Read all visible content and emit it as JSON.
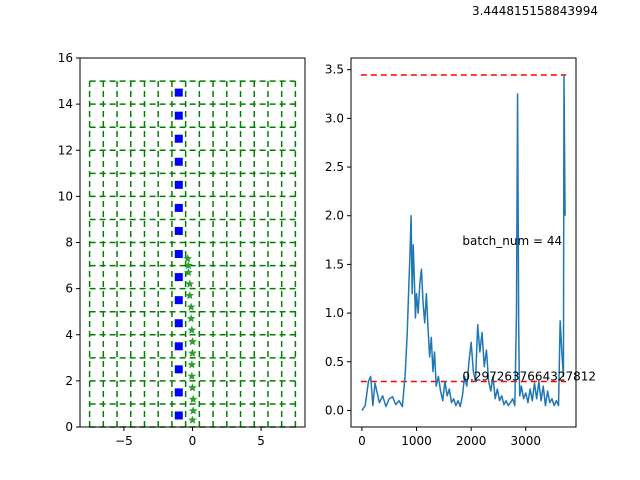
{
  "figure": {
    "top_text": "3.444815158843994"
  },
  "colors": {
    "grid_lines": "#008000",
    "grid_markers": "#0000ff",
    "trajectory": "#2ca02c",
    "series": "#1f77b4",
    "reference_lines": "#ff0000"
  },
  "chart_data": [
    {
      "type": "scatter",
      "xlim": [
        -8.2,
        8.2
      ],
      "ylim": [
        0,
        16
      ],
      "x_ticks": [
        -5,
        0,
        5
      ],
      "y_ticks": [
        0,
        2,
        4,
        6,
        8,
        10,
        12,
        14,
        16
      ],
      "x_tick_labels": [
        "−5",
        "0",
        "5"
      ],
      "y_tick_labels": [
        "0",
        "2",
        "4",
        "6",
        "8",
        "10",
        "12",
        "14",
        "16"
      ],
      "grid": {
        "x_lines": [
          -7.5,
          -6.5,
          -5.5,
          -4.5,
          -3.5,
          -2.5,
          -1.5,
          -0.5,
          0.5,
          1.5,
          2.5,
          3.5,
          4.5,
          5.5,
          6.5,
          7.5
        ],
        "y_lines": [
          0,
          1,
          2,
          3,
          4,
          5,
          6,
          7,
          8,
          9,
          10,
          11,
          12,
          13,
          14,
          15
        ],
        "x_span": [
          -7.5,
          7.5
        ],
        "y_span": [
          0,
          15
        ],
        "style": "dashed"
      },
      "square_markers": {
        "x": -1.0,
        "y": [
          0.5,
          1.5,
          2.5,
          3.5,
          4.5,
          5.5,
          6.5,
          7.5,
          8.5,
          9.5,
          10.5,
          11.5,
          12.5,
          13.5,
          14.5
        ]
      },
      "star_markers": {
        "x": [
          0.0,
          0.05,
          0.05,
          0.0,
          -0.05,
          -0.05,
          0.0,
          0.0,
          -0.05,
          -0.1,
          -0.1,
          -0.2,
          -0.2,
          -0.3,
          -0.3,
          -0.35
        ],
        "y": [
          0.3,
          0.7,
          1.2,
          1.7,
          2.2,
          2.7,
          3.2,
          3.7,
          4.2,
          4.7,
          5.2,
          5.7,
          6.2,
          6.7,
          7.0,
          7.3
        ]
      }
    },
    {
      "type": "line",
      "xlim": [
        -200,
        3920
      ],
      "ylim": [
        -0.17,
        3.62
      ],
      "x_ticks": [
        0,
        1000,
        2000,
        3000
      ],
      "y_ticks": [
        0.0,
        0.5,
        1.0,
        1.5,
        2.0,
        2.5,
        3.0,
        3.5
      ],
      "x_tick_labels": [
        "0",
        "1000",
        "2000",
        "3000"
      ],
      "y_tick_labels": [
        "0.0",
        "0.5",
        "1.0",
        "1.5",
        "2.0",
        "2.5",
        "3.0",
        "3.5"
      ],
      "series": [
        {
          "x": [
            0,
            60,
            120,
            160,
            200,
            240,
            280,
            320,
            380,
            440,
            500,
            560,
            620,
            680,
            740,
            790,
            830,
            860,
            880,
            900,
            920,
            940,
            960,
            980,
            1000,
            1030,
            1060,
            1090,
            1120,
            1150,
            1180,
            1210,
            1240,
            1270,
            1300,
            1330,
            1360,
            1400,
            1440,
            1480,
            1520,
            1560,
            1600,
            1640,
            1680,
            1720,
            1760,
            1800,
            1840,
            1880,
            1920,
            1960,
            2000,
            2040,
            2080,
            2120,
            2160,
            2200,
            2240,
            2280,
            2320,
            2360,
            2400,
            2440,
            2480,
            2520,
            2560,
            2600,
            2640,
            2680,
            2720,
            2760,
            2800,
            2830,
            2850,
            2860,
            2870,
            2880,
            2890,
            2920,
            2960,
            3000,
            3040,
            3080,
            3120,
            3160,
            3200,
            3240,
            3280,
            3320,
            3360,
            3400,
            3440,
            3480,
            3520,
            3560,
            3600,
            3630,
            3660,
            3690,
            3700,
            3720
          ],
          "y": [
            0.0,
            0.05,
            0.3,
            0.35,
            0.05,
            0.28,
            0.18,
            0.08,
            0.15,
            0.04,
            0.12,
            0.14,
            0.06,
            0.1,
            0.04,
            0.35,
            0.8,
            1.3,
            1.6,
            2.0,
            1.2,
            1.7,
            1.35,
            0.95,
            1.2,
            1.0,
            1.3,
            1.45,
            1.1,
            0.9,
            1.2,
            0.85,
            0.55,
            0.75,
            0.4,
            0.6,
            0.25,
            0.35,
            0.2,
            0.1,
            0.3,
            0.15,
            0.22,
            0.08,
            0.12,
            0.05,
            0.1,
            0.04,
            0.15,
            0.35,
            0.25,
            0.5,
            0.7,
            0.4,
            0.3,
            0.88,
            0.6,
            0.8,
            0.45,
            0.62,
            0.3,
            0.2,
            0.35,
            0.12,
            0.22,
            0.1,
            0.15,
            0.06,
            0.1,
            0.05,
            0.08,
            0.12,
            0.05,
            1.0,
            3.25,
            2.2,
            0.9,
            0.4,
            0.15,
            0.25,
            0.12,
            0.18,
            0.08,
            0.22,
            0.1,
            0.28,
            0.12,
            0.3,
            0.1,
            0.25,
            0.05,
            0.2,
            0.08,
            0.12,
            0.05,
            0.1,
            0.05,
            0.92,
            0.6,
            0.35,
            3.444815158843994,
            2.0
          ]
        }
      ],
      "reference_lines": [
        {
          "y": 3.444815158843994,
          "x_span": [
            -20,
            3740
          ],
          "style": "dashed"
        },
        {
          "y": 0.2972637664327812,
          "x_span": [
            -20,
            3740
          ],
          "style": "dashed"
        }
      ],
      "annotations": [
        {
          "text": "batch_num = 44",
          "x": 1840,
          "y": 1.74
        },
        {
          "text": "0.2972637664327812",
          "x": 1840,
          "y": 0.35
        }
      ]
    }
  ]
}
